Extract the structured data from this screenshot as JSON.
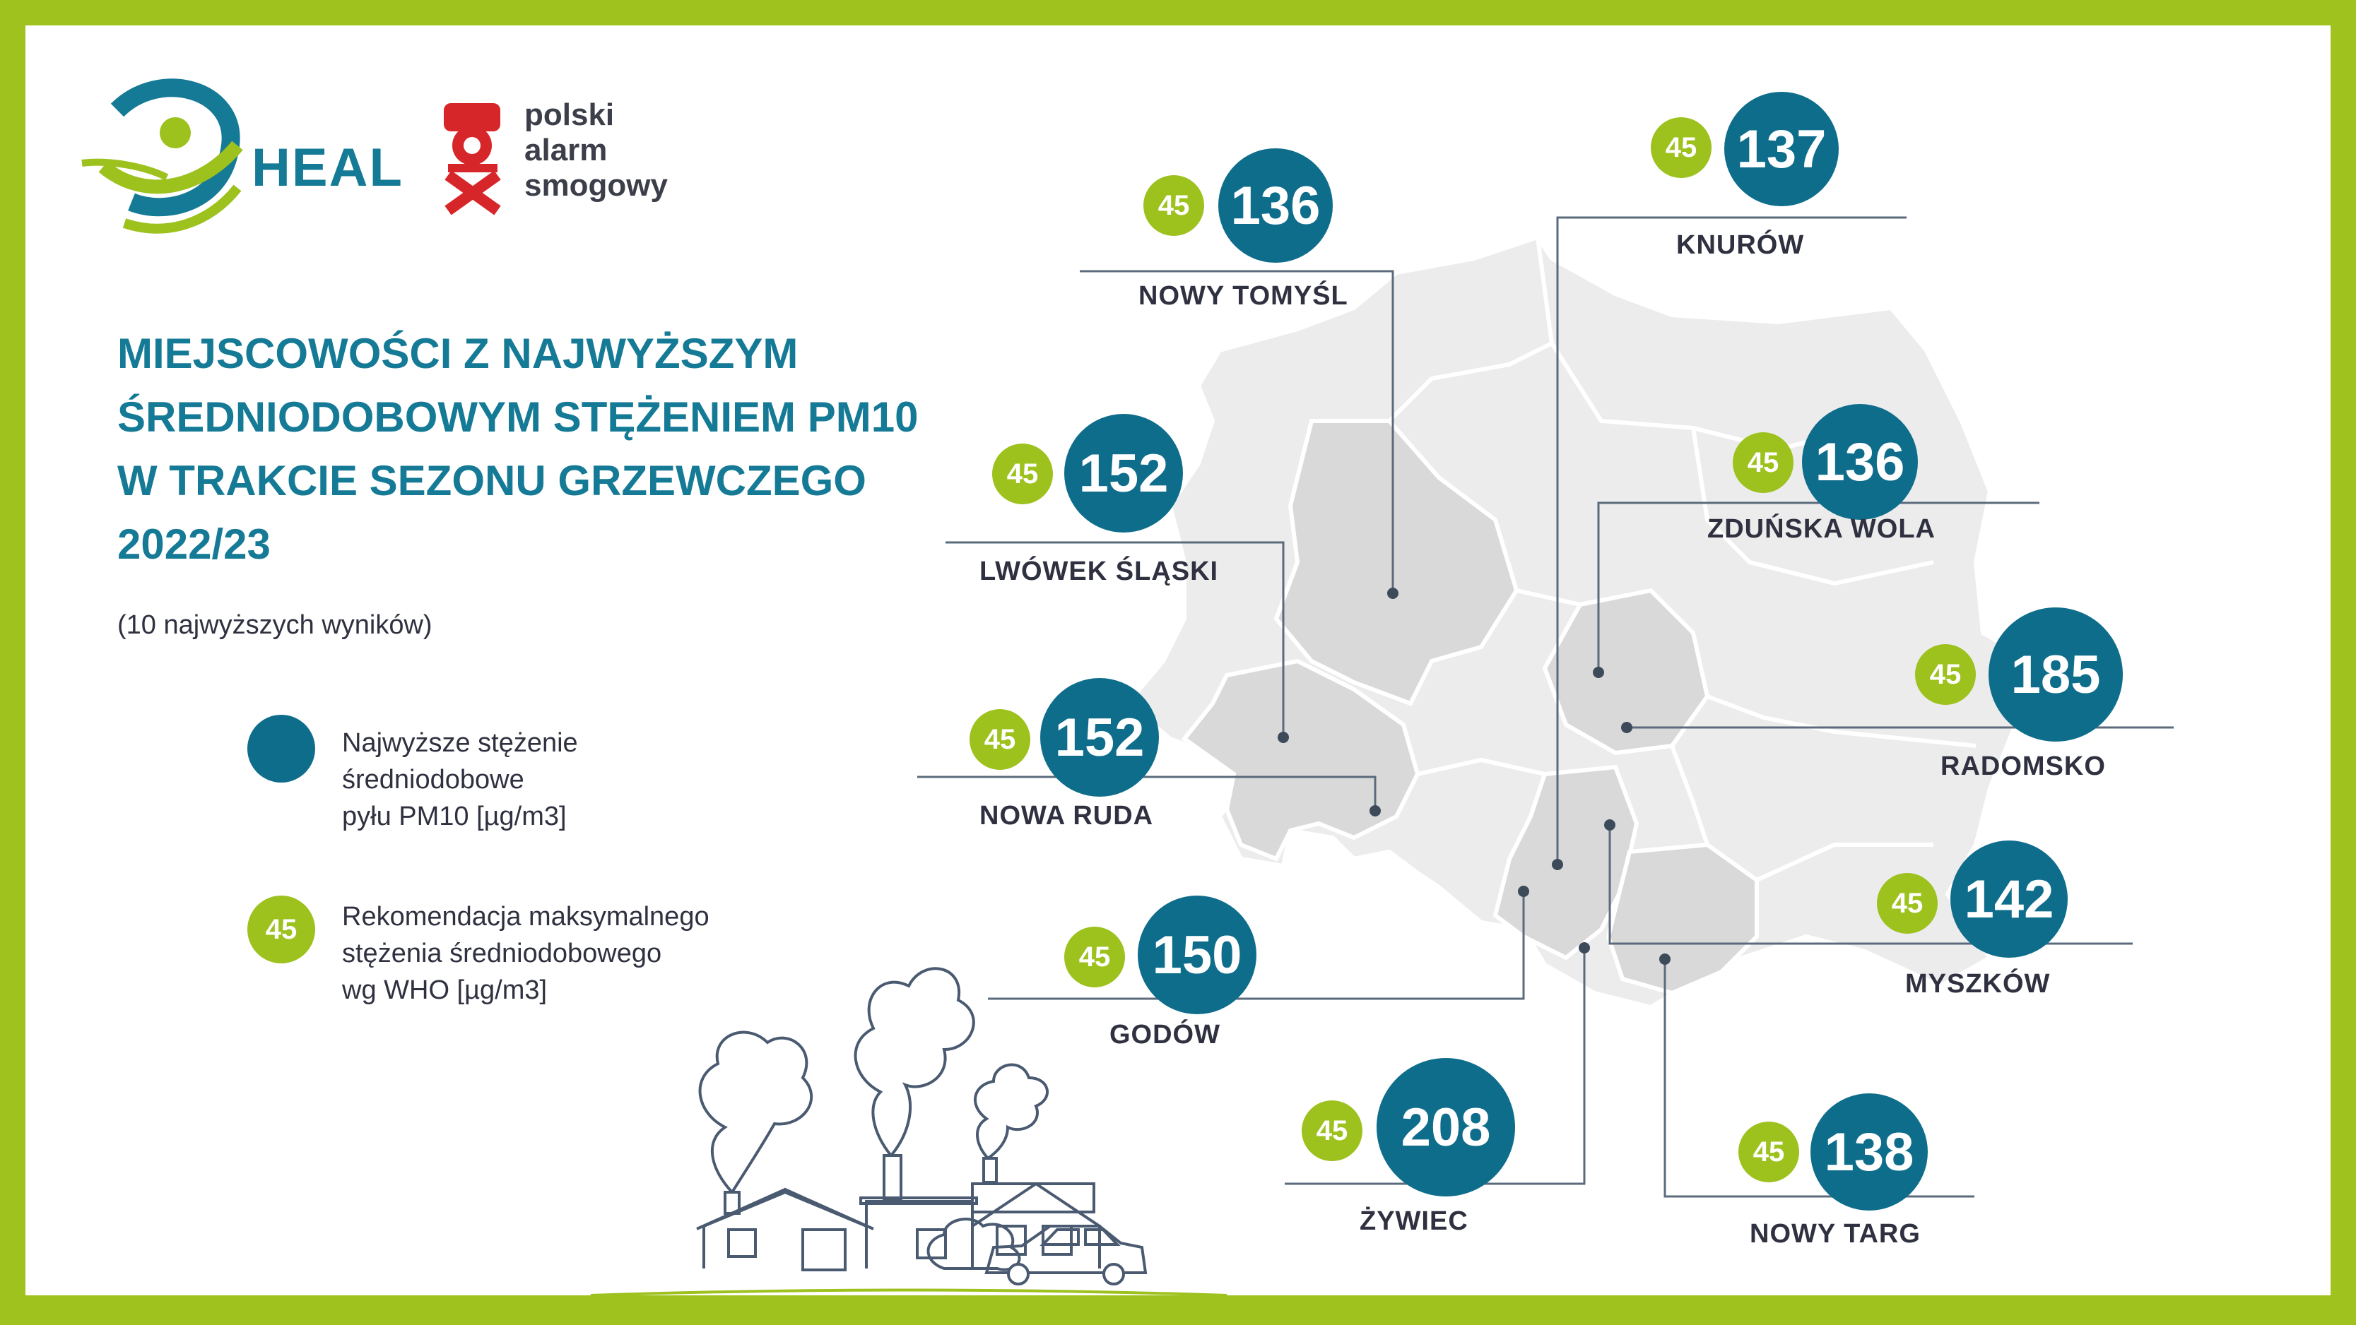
{
  "logos": {
    "heal_text": "HEAL",
    "psa_lines": [
      "polski",
      "alarm",
      "smogowy"
    ]
  },
  "title_lines": [
    "MIEJSCOWOŚCI Z NAJWYŻSZYM",
    "ŚREDNIODOBOWYM STĘŻENIEM PM10",
    "W TRAKCIE SEZONU GRZEWCZEGO",
    "2022/23"
  ],
  "subtitle": "(10 najwyższych wyników)",
  "legend": {
    "pm10_lines": [
      "Najwyższe stężenie",
      "średniodobowe",
      "pyłu PM10 [µg/m3]"
    ],
    "who_value": "45",
    "who_lines": [
      "Rekomendacja maksymalnego",
      "stężenia średniodobowego",
      "wg WHO [µg/m3]"
    ]
  },
  "colors": {
    "frame": "#a0c21e",
    "title": "#157a96",
    "pm10_bubble": "#0f6d8c",
    "who_bubble": "#9dc11d",
    "map_fill": "#ececec",
    "map_highlight": "#d9d9d9"
  },
  "cities": [
    {
      "name": "NOWY TOMYŚL",
      "value": "136",
      "who": "45"
    },
    {
      "name": "KNURÓW",
      "value": "137",
      "who": "45"
    },
    {
      "name": "LWÓWEK ŚLĄSKI",
      "value": "152",
      "who": "45"
    },
    {
      "name": "ZDUŃSKA WOLA",
      "value": "136",
      "who": "45"
    },
    {
      "name": "RADOMSKO",
      "value": "185",
      "who": "45"
    },
    {
      "name": "NOWA RUDA",
      "value": "152",
      "who": "45"
    },
    {
      "name": "MYSZKÓW",
      "value": "142",
      "who": "45"
    },
    {
      "name": "GODÓW",
      "value": "150",
      "who": "45"
    },
    {
      "name": "ŻYWIEC",
      "value": "208",
      "who": "45"
    },
    {
      "name": "NOWY TARG",
      "value": "138",
      "who": "45"
    }
  ]
}
